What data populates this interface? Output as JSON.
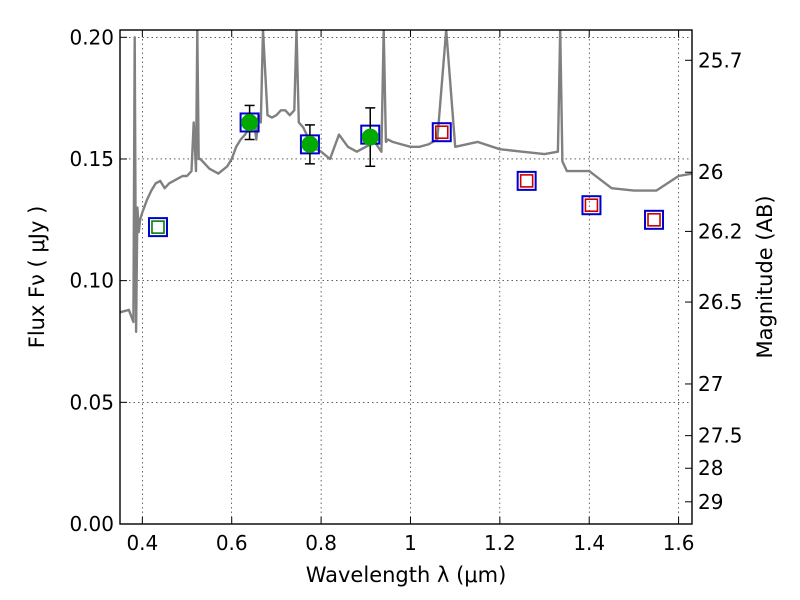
{
  "chart_data": {
    "type": "scatter",
    "xlabel": "Wavelength  λ (μm)",
    "ylabel": "Flux  Fν  ( μJy )",
    "ylabel_right": "Magnitude (AB)",
    "xlim": [
      0.35,
      1.63
    ],
    "ylim": [
      0.0,
      0.203
    ],
    "grid": true,
    "x_ticks": [
      {
        "value": 0.4,
        "label": "0.4"
      },
      {
        "value": 0.6,
        "label": "0.6"
      },
      {
        "value": 0.8,
        "label": "0.8"
      },
      {
        "value": 1.0,
        "label": "1"
      },
      {
        "value": 1.2,
        "label": "1.2"
      },
      {
        "value": 1.4,
        "label": "1.4"
      },
      {
        "value": 1.6,
        "label": "1.6"
      }
    ],
    "y_ticks": [
      {
        "value": 0.0,
        "label": "0.00"
      },
      {
        "value": 0.05,
        "label": "0.05"
      },
      {
        "value": 0.1,
        "label": "0.10"
      },
      {
        "value": 0.15,
        "label": "0.15"
      },
      {
        "value": 0.2,
        "label": "0.20"
      }
    ],
    "right_ticks": [
      {
        "value": 25.7,
        "label": "25.7"
      },
      {
        "value": 26.0,
        "label": "26"
      },
      {
        "value": 26.2,
        "label": "26.2"
      },
      {
        "value": 26.5,
        "label": "26.5"
      },
      {
        "value": 27.0,
        "label": "27"
      },
      {
        "value": 27.5,
        "label": "27.5"
      },
      {
        "value": 28.0,
        "label": "28"
      },
      {
        "value": 29.0,
        "label": "29"
      }
    ],
    "series": [
      {
        "kind": "line",
        "color": "#808080",
        "x": [
          0.35,
          0.37,
          0.38,
          0.383,
          0.386,
          0.389,
          0.392,
          0.395,
          0.4,
          0.41,
          0.42,
          0.43,
          0.44,
          0.45,
          0.46,
          0.47,
          0.48,
          0.49,
          0.5,
          0.51,
          0.515,
          0.52,
          0.523,
          0.526,
          0.53,
          0.55,
          0.57,
          0.59,
          0.6,
          0.61,
          0.62,
          0.63,
          0.64,
          0.65,
          0.655,
          0.66,
          0.665,
          0.67,
          0.68,
          0.69,
          0.7,
          0.71,
          0.72,
          0.73,
          0.74,
          0.745,
          0.75,
          0.76,
          0.78,
          0.8,
          0.82,
          0.84,
          0.86,
          0.88,
          0.9,
          0.92,
          0.935,
          0.94,
          0.945,
          0.95,
          0.96,
          0.98,
          1.0,
          1.02,
          1.04,
          1.06,
          1.08,
          1.1,
          1.15,
          1.2,
          1.25,
          1.3,
          1.33,
          1.335,
          1.34,
          1.35,
          1.4,
          1.45,
          1.5,
          1.55,
          1.6,
          1.63
        ],
        "y": [
          0.087,
          0.088,
          0.083,
          0.2,
          0.079,
          0.13,
          0.12,
          0.125,
          0.128,
          0.133,
          0.137,
          0.14,
          0.141,
          0.138,
          0.14,
          0.141,
          0.142,
          0.143,
          0.143,
          0.145,
          0.165,
          0.145,
          0.203,
          0.15,
          0.15,
          0.146,
          0.144,
          0.147,
          0.15,
          0.155,
          0.158,
          0.16,
          0.163,
          0.165,
          0.158,
          0.168,
          0.165,
          0.203,
          0.168,
          0.167,
          0.168,
          0.17,
          0.17,
          0.168,
          0.17,
          0.203,
          0.165,
          0.163,
          0.155,
          0.153,
          0.15,
          0.16,
          0.155,
          0.153,
          0.155,
          0.157,
          0.153,
          0.203,
          0.157,
          0.158,
          0.157,
          0.156,
          0.155,
          0.155,
          0.156,
          0.158,
          0.203,
          0.155,
          0.157,
          0.154,
          0.153,
          0.152,
          0.153,
          0.203,
          0.149,
          0.145,
          0.145,
          0.138,
          0.137,
          0.137,
          0.143,
          0.144
        ]
      },
      {
        "kind": "markers",
        "marker": "square",
        "color": "#0000cc",
        "x": [
          0.435,
          0.64,
          0.775,
          0.91,
          1.07,
          1.26,
          1.405,
          1.545
        ],
        "y": [
          0.122,
          0.165,
          0.156,
          0.16,
          0.161,
          0.141,
          0.131,
          0.125
        ]
      },
      {
        "kind": "markers",
        "marker": "square-small",
        "color": "#008000",
        "x": [
          0.435
        ],
        "y": [
          0.122
        ]
      },
      {
        "kind": "markers",
        "marker": "square-small",
        "color": "#cc0000",
        "x": [
          1.07,
          1.26,
          1.405,
          1.545
        ],
        "y": [
          0.161,
          0.141,
          0.131,
          0.125
        ]
      },
      {
        "kind": "markers",
        "marker": "circle",
        "color": "#00aa00",
        "x": [
          0.64,
          0.775,
          0.91
        ],
        "y": [
          0.165,
          0.156,
          0.159
        ],
        "err": [
          0.007,
          0.008,
          0.012
        ]
      }
    ]
  }
}
